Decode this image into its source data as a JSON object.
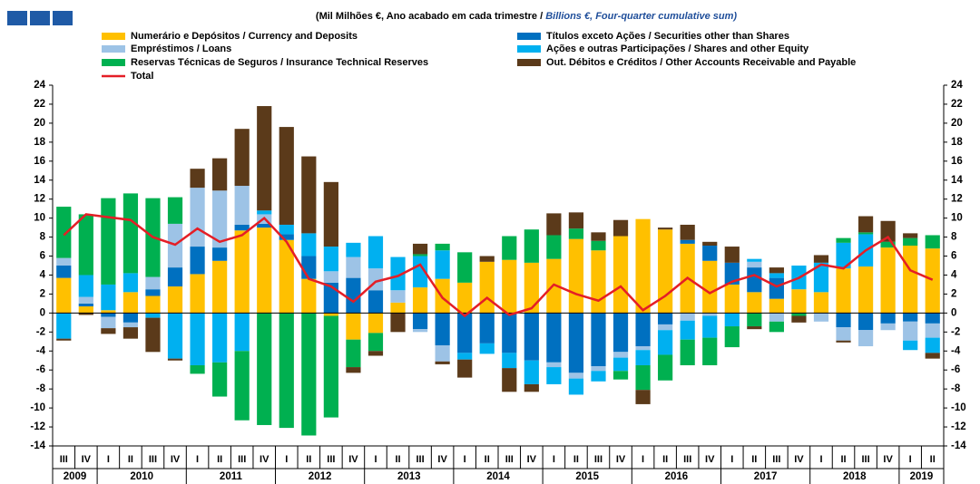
{
  "chart_data": {
    "type": "stacked-bar-line",
    "title": "(Mil Milhões €, Ano acabado em cada trimestre / ",
    "title_en": "Billions  €, Four-quarter cumulative sum)",
    "categories": [
      "III",
      "IV",
      "I",
      "II",
      "III",
      "IV",
      "I",
      "II",
      "III",
      "IV",
      "I",
      "II",
      "III",
      "IV",
      "I",
      "II",
      "III",
      "IV",
      "I",
      "II",
      "III",
      "IV",
      "I",
      "II",
      "III",
      "IV",
      "I",
      "II",
      "III",
      "IV",
      "I",
      "II",
      "III",
      "IV",
      "I",
      "II",
      "III",
      "IV",
      "I",
      "II"
    ],
    "years": [
      "2009",
      "2010",
      "2011",
      "2012",
      "2013",
      "2014",
      "2015",
      "2016",
      "2017",
      "2018",
      "2019"
    ],
    "ylim": [
      -14,
      24
    ],
    "yticks": [
      -14,
      -12,
      -10,
      -8,
      -6,
      -4,
      -2,
      0,
      2,
      4,
      6,
      8,
      10,
      12,
      14,
      16,
      18,
      20,
      22,
      24
    ],
    "series": [
      {
        "name": "Numerário e Depósitos / Currency and Deposits",
        "color": "#FFC000",
        "values": [
          3.7,
          0.7,
          0.3,
          2.2,
          1.8,
          2.8,
          4.1,
          5.5,
          8.7,
          9.0,
          7.7,
          3.6,
          -0.3,
          -2.8,
          -2.1,
          1.1,
          2.7,
          3.6,
          3.2,
          5.4,
          5.6,
          5.3,
          5.7,
          7.8,
          6.6,
          8.1,
          9.9,
          8.8,
          7.3,
          5.5,
          3.0,
          2.2,
          1.5,
          2.5,
          2.2,
          4.7,
          4.9,
          6.9,
          7.1,
          6.8
        ]
      },
      {
        "name": "Títulos exceto Ações / Securities other than Shares",
        "color": "#0070C0",
        "values": [
          1.3,
          0.3,
          -0.4,
          -1.0,
          0.7,
          2.0,
          2.9,
          1.4,
          0.6,
          0.4,
          0.6,
          2.4,
          3.2,
          3.7,
          2.4,
          0,
          -1.7,
          -3.4,
          -4.2,
          -3.2,
          -4.2,
          -5.0,
          -5.2,
          -6.3,
          -5.6,
          -4.1,
          -3.5,
          -1.2,
          0.4,
          1.6,
          2.3,
          2.6,
          2.2,
          0,
          0,
          -1.5,
          -1.8,
          -1.1,
          -0.9,
          -1.1
        ]
      },
      {
        "name": "Empréstimos / Loans",
        "color": "#9DC3E6",
        "values": [
          0.8,
          0.7,
          -1.2,
          -0.5,
          1.3,
          4.6,
          6.2,
          6.0,
          4.1,
          1.0,
          0,
          0,
          1.2,
          2.2,
          2.3,
          1.3,
          -0.3,
          -1.7,
          0,
          0,
          0,
          0,
          -0.5,
          -0.6,
          -0.5,
          -0.6,
          -0.4,
          -0.6,
          -0.8,
          -0.3,
          0,
          0.6,
          -0.9,
          0,
          -0.9,
          -1.4,
          -1.7,
          -0.7,
          -2.0,
          -1.5
        ]
      },
      {
        "name": "Ações e outras Participações / Shares and other Equity",
        "color": "#00B0F0",
        "values": [
          -2.7,
          2.3,
          2.7,
          2.0,
          -0.5,
          -4.8,
          -5.5,
          -5.2,
          -4.0,
          0.4,
          1.0,
          2.4,
          2.6,
          1.5,
          3.4,
          3.5,
          3.3,
          3.0,
          -0.7,
          -1.1,
          -1.6,
          -2.5,
          -1.8,
          -1.7,
          -1.1,
          -1.4,
          -1.6,
          -2.6,
          -2.0,
          -2.3,
          -1.4,
          0.3,
          0.5,
          2.5,
          3.1,
          2.7,
          3.4,
          0,
          -1.0,
          -1.6
        ]
      },
      {
        "name": "Reservas Técnicas de Seguros / Insurance Technical Reserves",
        "color": "#00B050",
        "values": [
          5.4,
          6.4,
          9.1,
          8.4,
          8.3,
          2.8,
          -0.9,
          -3.6,
          -7.3,
          -11.8,
          -12.1,
          -12.9,
          -10.7,
          -2.9,
          -1.9,
          0,
          0.2,
          0.7,
          3.2,
          0,
          2.5,
          3.5,
          2.5,
          1.1,
          1.0,
          -0.9,
          -2.6,
          -2.7,
          -2.7,
          -2.9,
          -2.2,
          -1.4,
          -1.1,
          -0.3,
          0,
          0.5,
          0.2,
          0.6,
          0.8,
          1.4
        ]
      },
      {
        "name": "Out. Débitos e Créditos / Other Accounts Receivable and Payable",
        "color": "#5B3A1A",
        "values": [
          -0.2,
          -0.2,
          -0.6,
          -1.2,
          -3.6,
          -0.2,
          2.0,
          3.4,
          6.0,
          11.0,
          10.3,
          8.1,
          6.8,
          -0.6,
          -0.5,
          -2.0,
          1.1,
          -0.3,
          -1.9,
          0.6,
          -2.5,
          -0.8,
          2.3,
          1.7,
          0.9,
          1.7,
          -1.5,
          0.2,
          1.6,
          0.4,
          1.7,
          -0.3,
          0.6,
          -0.7,
          0.8,
          -0.2,
          1.7,
          2.2,
          0.5,
          -0.6
        ]
      }
    ],
    "line": {
      "name": "Total",
      "color": "#E41E26",
      "values": [
        8.2,
        10.4,
        10.1,
        9.8,
        8.0,
        7.2,
        8.9,
        7.5,
        8.2,
        10.0,
        7.5,
        3.6,
        2.8,
        1.2,
        3.3,
        3.9,
        5.1,
        1.6,
        -0.3,
        1.6,
        -0.2,
        0.5,
        3.0,
        2.0,
        1.3,
        2.8,
        0.3,
        1.8,
        3.7,
        2.1,
        3.3,
        4.0,
        2.8,
        3.7,
        5.1,
        4.7,
        6.6,
        8.0,
        4.5,
        3.5
      ]
    }
  }
}
